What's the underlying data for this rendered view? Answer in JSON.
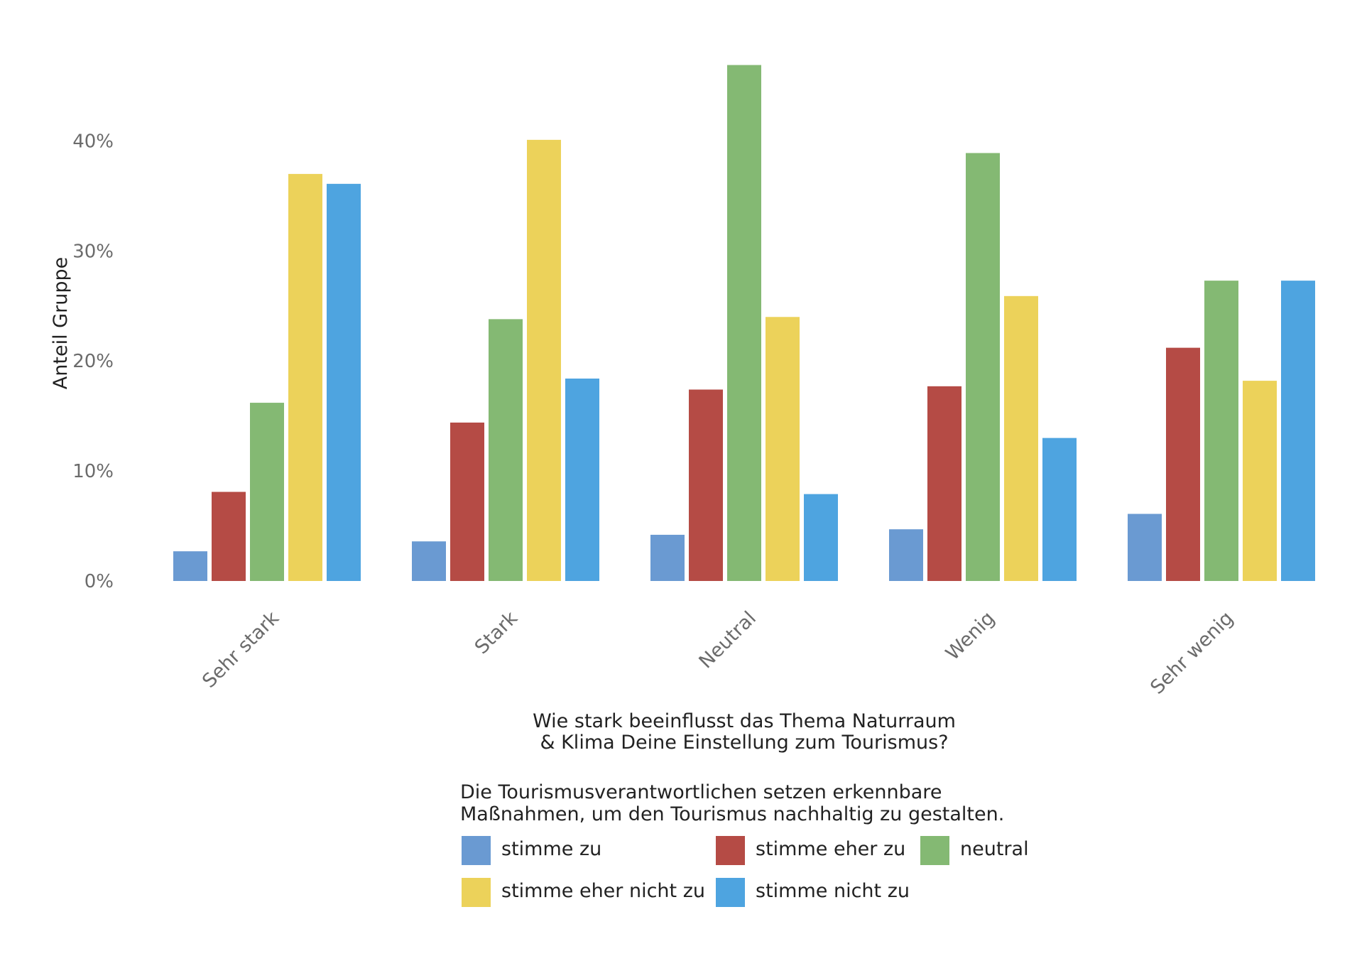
{
  "chart_data": {
    "type": "bar",
    "title": "",
    "xlabel_lines": [
      "Wie stark beeinflusst das Thema Naturraum",
      "& Klima Deine Einstellung zum Tourismus?"
    ],
    "ylabel": "Anteil Gruppe",
    "ylim": [
      0,
      47
    ],
    "yticks": [
      0,
      10,
      20,
      30,
      40
    ],
    "ytick_labels": [
      "0%",
      "10%",
      "20%",
      "30%",
      "40%"
    ],
    "grid": false,
    "categories": [
      "Sehr stark",
      "Stark",
      "Neutral",
      "Wenig",
      "Sehr wenig"
    ],
    "series": [
      {
        "name": "stimme zu",
        "color": "#6a9ad2",
        "values": [
          2.7,
          3.6,
          4.2,
          4.7,
          6.1
        ]
      },
      {
        "name": "stimme eher zu",
        "color": "#b54b45",
        "values": [
          8.1,
          14.4,
          17.4,
          17.7,
          21.2
        ]
      },
      {
        "name": "neutral",
        "color": "#84b973",
        "values": [
          16.2,
          23.8,
          46.9,
          38.9,
          27.3
        ]
      },
      {
        "name": "stimme eher nicht zu",
        "color": "#ecd25a",
        "values": [
          37.0,
          40.1,
          24.0,
          25.9,
          18.2
        ]
      },
      {
        "name": "stimme nicht zu",
        "color": "#4ea4e0",
        "values": [
          36.1,
          18.4,
          7.9,
          13.0,
          27.3
        ]
      }
    ],
    "legend": {
      "title_lines": [
        "Die Tourismusverantwortlichen setzen erkennbare",
        "Maßnahmen, um den Tourismus nachhaltig zu gestalten."
      ],
      "placement": "bottom-center"
    }
  }
}
